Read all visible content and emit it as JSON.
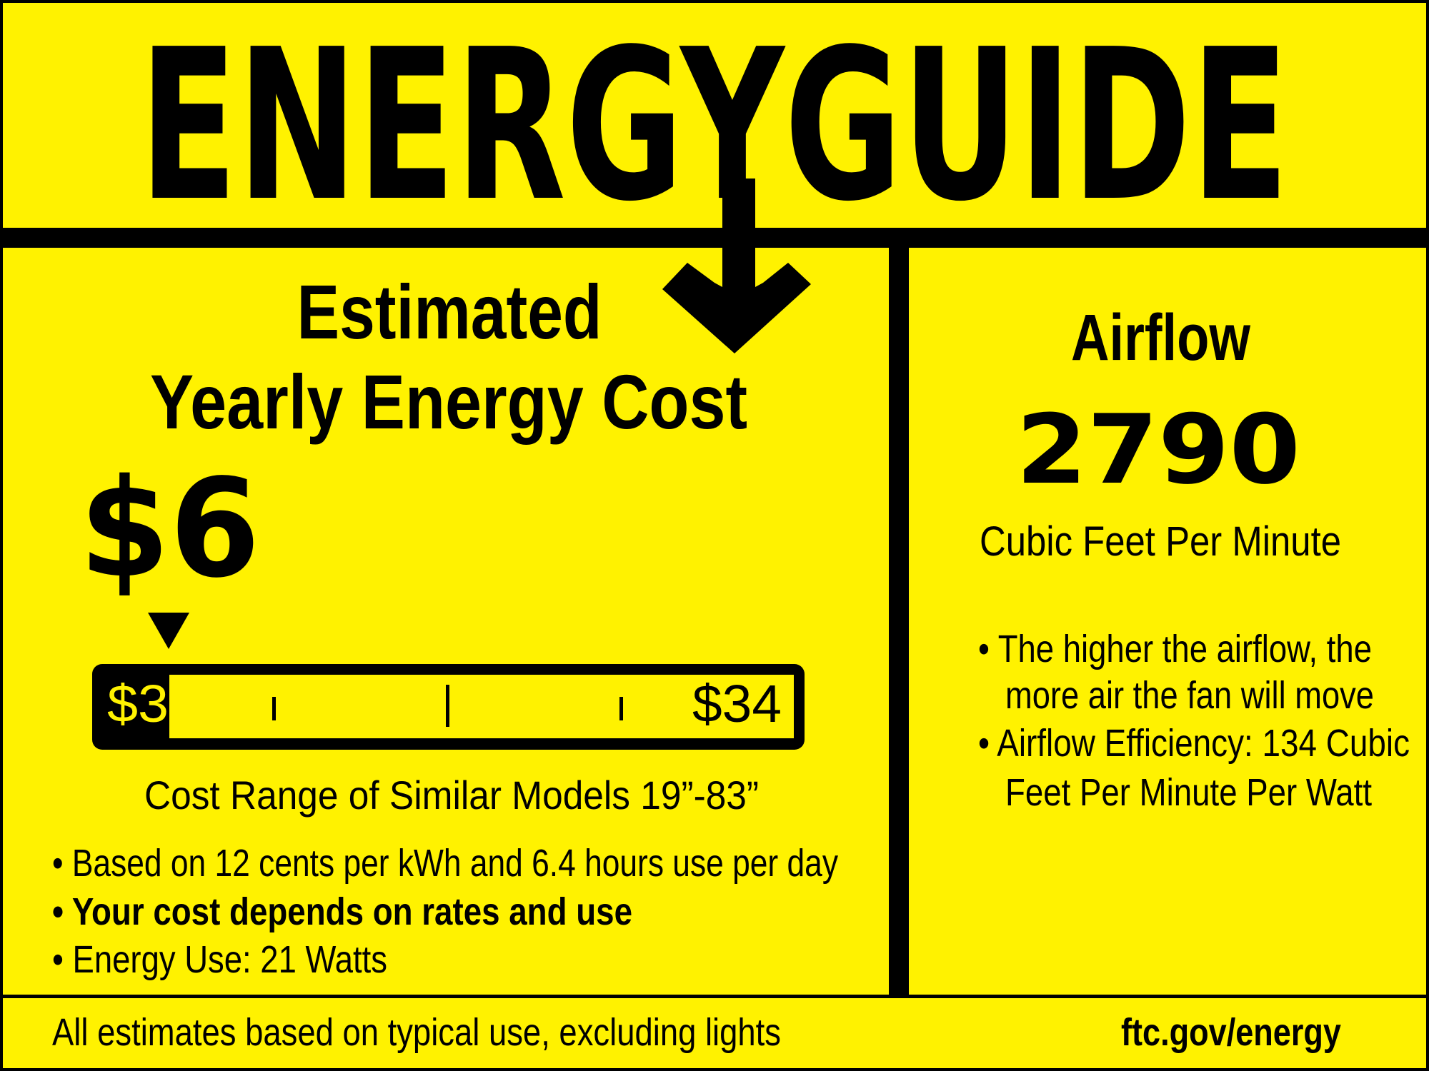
{
  "colors": {
    "background": "#fff200",
    "ink": "#000000"
  },
  "header": {
    "title": "ENERGYGUIDE"
  },
  "cost": {
    "heading_line1": "Estimated",
    "heading_line2": "Yearly Energy Cost",
    "value": "$6",
    "scale": {
      "min_label": "$3",
      "max_label": "$34",
      "min": 3,
      "max": 34,
      "marker_value": 6
    },
    "range_caption": "Cost Range of Similar Models 19”-83”",
    "bullets": [
      "• Based on 12 cents per kWh and 6.4 hours use per day",
      "• Your cost depends on rates and use",
      "• Energy Use: 21 Watts"
    ]
  },
  "airflow": {
    "heading": "Airflow",
    "value": "2790",
    "unit": "Cubic Feet Per Minute",
    "bullets": [
      "• The higher the airflow, the",
      "more air the fan will move",
      "• Airflow Efficiency: 134 Cubic",
      "Feet Per Minute Per Watt"
    ]
  },
  "footer": {
    "note": "All estimates based on typical use, excluding lights",
    "link": "ftc.gov/energy"
  }
}
